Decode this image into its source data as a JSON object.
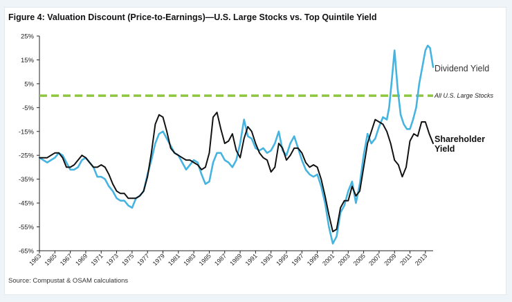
{
  "chart_data": {
    "type": "line",
    "title": "Figure 4: Valuation Discount (Price-to-Earnings)—U.S. Large Stocks vs. Top Quintile Yield",
    "source": "Source: Compustat & OSAM calculations",
    "xlabel": "",
    "ylabel": "",
    "xlim": [
      1963,
      2014
    ],
    "ylim": [
      -65,
      25
    ],
    "y_ticks": [
      25,
      15,
      5,
      -5,
      -15,
      -25,
      -35,
      -45,
      -55,
      -65
    ],
    "y_tick_labels": [
      "25%",
      "15%",
      "5%",
      "-5%",
      "-15%",
      "-25%",
      "-35%",
      "-45%",
      "-55%",
      "-65%"
    ],
    "x_ticks": [
      1963,
      1965,
      1967,
      1969,
      1971,
      1973,
      1975,
      1977,
      1979,
      1981,
      1983,
      1985,
      1987,
      1989,
      1991,
      1993,
      1995,
      1997,
      1999,
      2001,
      2003,
      2005,
      2007,
      2009,
      2011,
      2013
    ],
    "x_tick_labels": [
      "1963",
      "1965",
      "1967",
      "1969",
      "1971",
      "1973",
      "1975",
      "1977",
      "1979",
      "1981",
      "1983",
      "1985",
      "1987",
      "1989",
      "1991",
      "1993",
      "1995",
      "1997",
      "1999",
      "2001",
      "2003",
      "2005",
      "2007",
      "2009",
      "2011",
      "2013"
    ],
    "reference_line": {
      "name": "All U.S. Large Stocks",
      "value": 0,
      "color": "#8dc63f"
    },
    "series": [
      {
        "name": "Dividend Yield",
        "color": "#45b4e0",
        "x": [
          1963.0,
          1963.5,
          1964.0,
          1964.5,
          1965.0,
          1965.5,
          1966.0,
          1966.5,
          1967.0,
          1967.5,
          1968.0,
          1968.5,
          1969.0,
          1969.5,
          1970.0,
          1970.5,
          1971.0,
          1971.5,
          1972.0,
          1972.5,
          1973.0,
          1973.5,
          1974.0,
          1974.5,
          1975.0,
          1975.5,
          1976.0,
          1976.5,
          1977.0,
          1977.5,
          1978.0,
          1978.5,
          1979.0,
          1979.5,
          1980.0,
          1980.5,
          1981.0,
          1981.5,
          1982.0,
          1982.5,
          1983.0,
          1983.5,
          1984.0,
          1984.5,
          1985.0,
          1985.5,
          1986.0,
          1986.5,
          1987.0,
          1987.5,
          1988.0,
          1988.5,
          1989.0,
          1989.5,
          1990.0,
          1990.5,
          1991.0,
          1991.5,
          1992.0,
          1992.5,
          1993.0,
          1993.5,
          1994.0,
          1994.5,
          1995.0,
          1995.5,
          1996.0,
          1996.5,
          1997.0,
          1997.5,
          1998.0,
          1998.5,
          1999.0,
          1999.5,
          2000.0,
          2000.5,
          2001.0,
          2001.5,
          2002.0,
          2002.5,
          2003.0,
          2003.5,
          2004.0,
          2004.5,
          2005.0,
          2005.5,
          2006.0,
          2006.5,
          2007.0,
          2007.5,
          2008.0,
          2008.3,
          2008.6,
          2009.0,
          2009.4,
          2009.8,
          2010.2,
          2010.6,
          2011.0,
          2011.4,
          2011.8,
          2012.2,
          2012.6,
          2013.0,
          2013.3,
          2013.6,
          2014.0
        ],
        "y": [
          -26,
          -27,
          -28,
          -27,
          -26,
          -24,
          -25,
          -28,
          -31,
          -31,
          -30,
          -27,
          -26,
          -28,
          -30,
          -34,
          -34,
          -35,
          -38,
          -40,
          -43,
          -44,
          -44,
          -46,
          -47,
          -43,
          -42,
          -40,
          -33,
          -27,
          -20,
          -16,
          -15,
          -18,
          -21,
          -24,
          -25,
          -28,
          -31,
          -29,
          -27,
          -28,
          -33,
          -37,
          -36,
          -28,
          -24,
          -24,
          -27,
          -28,
          -30,
          -27,
          -20,
          -10,
          -17,
          -18,
          -22,
          -23,
          -22,
          -24,
          -23,
          -20,
          -15,
          -23,
          -25,
          -20,
          -17,
          -22,
          -27,
          -31,
          -33,
          -34,
          -33,
          -38,
          -45,
          -55,
          -62,
          -59,
          -49,
          -46,
          -40,
          -36,
          -45,
          -37,
          -25,
          -16,
          -20,
          -18,
          -13,
          -9,
          -10,
          -5,
          5,
          19,
          3,
          -8,
          -12,
          -14,
          -14,
          -10,
          -5,
          5,
          12,
          19,
          21,
          20,
          12
        ]
      },
      {
        "name": "Shareholder Yield",
        "color": "#111111",
        "x": [
          1963.0,
          1963.5,
          1964.0,
          1964.5,
          1965.0,
          1965.5,
          1966.0,
          1966.5,
          1967.0,
          1967.5,
          1968.0,
          1968.5,
          1969.0,
          1969.5,
          1970.0,
          1970.5,
          1971.0,
          1971.5,
          1972.0,
          1972.5,
          1973.0,
          1973.5,
          1974.0,
          1974.5,
          1975.0,
          1975.5,
          1976.0,
          1976.5,
          1977.0,
          1977.5,
          1978.0,
          1978.5,
          1979.0,
          1979.5,
          1980.0,
          1980.5,
          1981.0,
          1981.5,
          1982.0,
          1982.5,
          1983.0,
          1983.5,
          1984.0,
          1984.5,
          1985.0,
          1985.5,
          1986.0,
          1986.5,
          1987.0,
          1987.5,
          1988.0,
          1988.5,
          1989.0,
          1989.5,
          1990.0,
          1990.5,
          1991.0,
          1991.5,
          1992.0,
          1992.5,
          1993.0,
          1993.5,
          1994.0,
          1994.5,
          1995.0,
          1995.5,
          1996.0,
          1996.5,
          1997.0,
          1997.5,
          1998.0,
          1998.5,
          1999.0,
          1999.5,
          2000.0,
          2000.5,
          2001.0,
          2001.5,
          2002.0,
          2002.5,
          2003.0,
          2003.5,
          2004.0,
          2004.5,
          2005.0,
          2005.5,
          2006.0,
          2006.5,
          2007.0,
          2007.5,
          2008.0,
          2008.5,
          2009.0,
          2009.5,
          2010.0,
          2010.5,
          2011.0,
          2011.5,
          2012.0,
          2012.5,
          2013.0,
          2013.5,
          2014.0
        ],
        "y": [
          -26,
          -26,
          -26,
          -25,
          -24,
          -24,
          -26,
          -30,
          -30,
          -29,
          -27,
          -25,
          -26,
          -28,
          -30,
          -30,
          -29,
          -30,
          -33,
          -37,
          -40,
          -41,
          -41,
          -43,
          -43,
          -43,
          -42,
          -40,
          -34,
          -24,
          -12,
          -8,
          -9,
          -15,
          -22,
          -24,
          -25,
          -26,
          -27,
          -27,
          -28,
          -29,
          -31,
          -30,
          -24,
          -9,
          -7,
          -14,
          -20,
          -19,
          -16,
          -23,
          -26,
          -18,
          -13,
          -15,
          -20,
          -24,
          -26,
          -27,
          -32,
          -30,
          -20,
          -22,
          -27,
          -25,
          -22,
          -22,
          -24,
          -28,
          -30,
          -29,
          -30,
          -35,
          -42,
          -50,
          -57,
          -56,
          -47,
          -44,
          -44,
          -38,
          -42,
          -40,
          -30,
          -20,
          -15,
          -10,
          -11,
          -12,
          -15,
          -20,
          -27,
          -29,
          -34,
          -30,
          -19,
          -16,
          -17,
          -11,
          -11,
          -16,
          -20
        ]
      }
    ]
  }
}
